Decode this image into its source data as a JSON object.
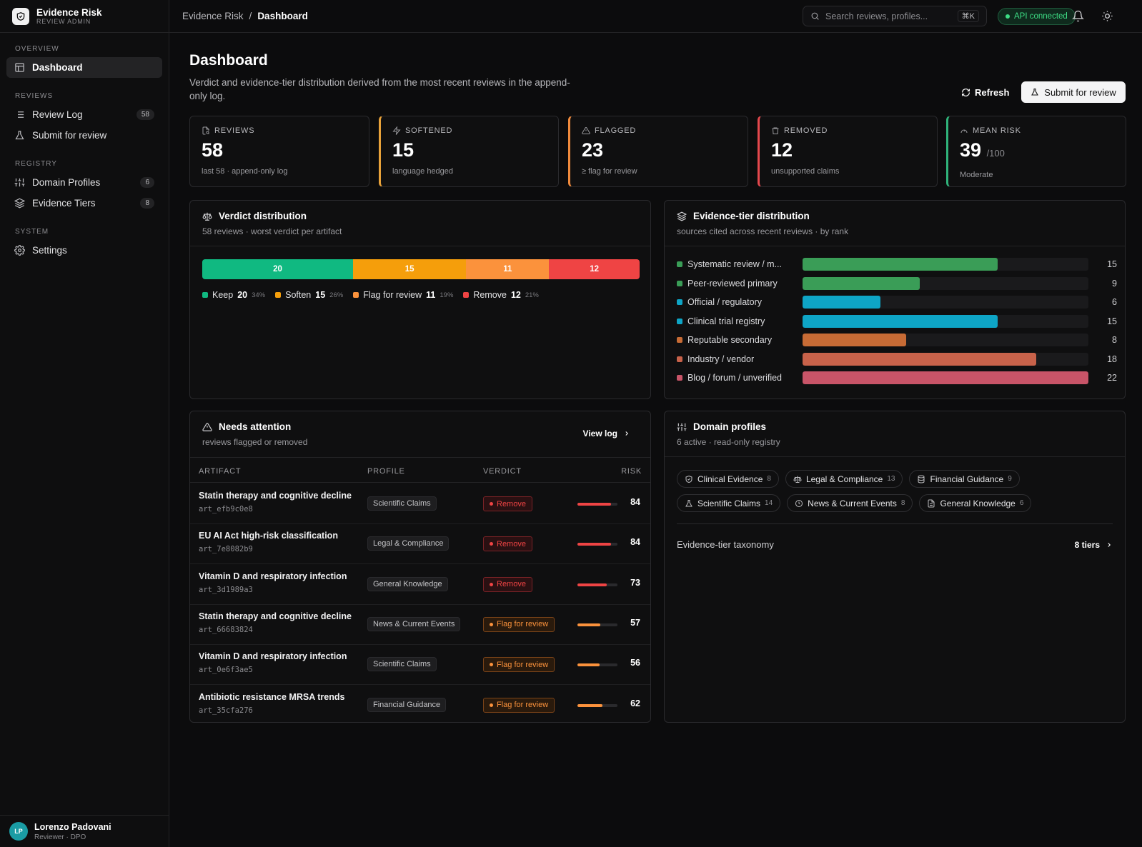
{
  "app": {
    "name": "Evidence Risk",
    "subtitle": "REVIEW ADMIN"
  },
  "sidebar": {
    "sections": {
      "overview": "OVERVIEW",
      "reviews": "REVIEWS",
      "registry": "REGISTRY",
      "system": "SYSTEM"
    },
    "items": [
      {
        "label": "Dashboard",
        "icon": "layout-dashboard-icon",
        "active": true
      },
      {
        "label": "Review Log",
        "icon": "list-icon",
        "badge": "58"
      },
      {
        "label": "Submit for review",
        "icon": "flask-icon"
      },
      {
        "label": "Domain Profiles",
        "icon": "sliders-icon",
        "badge": "6"
      },
      {
        "label": "Evidence Tiers",
        "icon": "layers-icon",
        "badge": "8"
      },
      {
        "label": "Settings",
        "icon": "gear-icon"
      }
    ],
    "user": {
      "initials": "LP",
      "name": "Lorenzo Padovani",
      "role": "Reviewer · DPO"
    }
  },
  "topbar": {
    "breadcrumb": [
      "Evidence Risk",
      "/",
      "Dashboard"
    ],
    "search_placeholder": "Search reviews, profiles...",
    "search_shortcut": "⌘K",
    "api_status": "API connected"
  },
  "page": {
    "title": "Dashboard",
    "description": "Verdict and evidence-tier distribution derived from the most recent reviews in the append-only log.",
    "refresh_label": "Refresh",
    "submit_label": "Submit for review"
  },
  "stats": [
    {
      "label": "REVIEWS",
      "value": "58",
      "suffix": "",
      "sub": "last 58 · append-only log",
      "accent": "#2a2a2d",
      "icon": "file-search-icon"
    },
    {
      "label": "SOFTENED",
      "value": "15",
      "suffix": "",
      "sub": "language hedged",
      "accent": "#e8a23a",
      "icon": "zap-icon"
    },
    {
      "label": "FLAGGED",
      "value": "23",
      "suffix": "",
      "sub": "≥ flag for review",
      "accent": "#f08a3c",
      "icon": "alert-triangle-icon"
    },
    {
      "label": "REMOVED",
      "value": "12",
      "suffix": "",
      "sub": "unsupported claims",
      "accent": "#e5484d",
      "icon": "trash-icon"
    },
    {
      "label": "MEAN RISK",
      "value": "39",
      "suffix": "/100",
      "sub": "Moderate",
      "accent": "#2fb37a",
      "icon": "gauge-icon"
    }
  ],
  "verdict": {
    "title": "Verdict distribution",
    "subtitle": "58 reviews · worst verdict per artifact",
    "segments": [
      {
        "label": "Keep",
        "count": 20,
        "pct": "34%",
        "color": "#10b981"
      },
      {
        "label": "Soften",
        "count": 15,
        "pct": "26%",
        "color": "#f59e0b"
      },
      {
        "label": "Flag for review",
        "count": 11,
        "pct": "19%",
        "color": "#fb923c"
      },
      {
        "label": "Remove",
        "count": 12,
        "pct": "21%",
        "color": "#ef4444"
      }
    ]
  },
  "tiers": {
    "title": "Evidence-tier distribution",
    "subtitle": "sources cited across recent reviews · by rank",
    "max": 22,
    "rows": [
      {
        "name": "Systematic review / m...",
        "count": 15,
        "color": "#3a9d57"
      },
      {
        "name": "Peer-reviewed primary",
        "count": 9,
        "color": "#3a9d57"
      },
      {
        "name": "Official / regulatory",
        "count": 6,
        "color": "#0ea5c6"
      },
      {
        "name": "Clinical trial registry",
        "count": 15,
        "color": "#0ea5c6"
      },
      {
        "name": "Reputable secondary",
        "count": 8,
        "color": "#c76b35"
      },
      {
        "name": "Industry / vendor",
        "count": 18,
        "color": "#c8624a"
      },
      {
        "name": "Blog / forum / unverified",
        "count": 22,
        "color": "#c85468"
      }
    ]
  },
  "attention": {
    "title": "Needs attention",
    "subtitle": "reviews flagged or removed",
    "view_log": "View log",
    "columns": [
      "ARTIFACT",
      "PROFILE",
      "VERDICT",
      "RISK"
    ],
    "rows": [
      {
        "title": "Statin therapy and cognitive decline",
        "id": "art_efb9c0e8",
        "profile": "Scientific Claims",
        "verdict": "Remove",
        "risk": 84
      },
      {
        "title": "EU AI Act high-risk classification",
        "id": "art_7e8082b9",
        "profile": "Legal & Compliance",
        "verdict": "Remove",
        "risk": 84
      },
      {
        "title": "Vitamin D and respiratory infection",
        "id": "art_3d1989a3",
        "profile": "General Knowledge",
        "verdict": "Remove",
        "risk": 73
      },
      {
        "title": "Statin therapy and cognitive decline",
        "id": "art_66683824",
        "profile": "News & Current Events",
        "verdict": "Flag for review",
        "risk": 57
      },
      {
        "title": "Vitamin D and respiratory infection",
        "id": "art_0e6f3ae5",
        "profile": "Scientific Claims",
        "verdict": "Flag for review",
        "risk": 56
      },
      {
        "title": "Antibiotic resistance MRSA trends",
        "id": "art_35cfa276",
        "profile": "Financial Guidance",
        "verdict": "Flag for review",
        "risk": 62
      }
    ]
  },
  "profiles": {
    "title": "Domain profiles",
    "subtitle": "6 active · read-only registry",
    "chips": [
      {
        "label": "Clinical Evidence",
        "count": "8",
        "icon": "shield-icon"
      },
      {
        "label": "Legal & Compliance",
        "count": "13",
        "icon": "scale-icon"
      },
      {
        "label": "Financial Guidance",
        "count": "9",
        "icon": "database-icon"
      },
      {
        "label": "Scientific Claims",
        "count": "14",
        "icon": "flask-icon"
      },
      {
        "label": "News & Current Events",
        "count": "8",
        "icon": "clock-icon"
      },
      {
        "label": "General Knowledge",
        "count": "6",
        "icon": "file-icon"
      }
    ],
    "taxonomy_label": "Evidence-tier taxonomy",
    "taxonomy_count": "8 tiers"
  }
}
